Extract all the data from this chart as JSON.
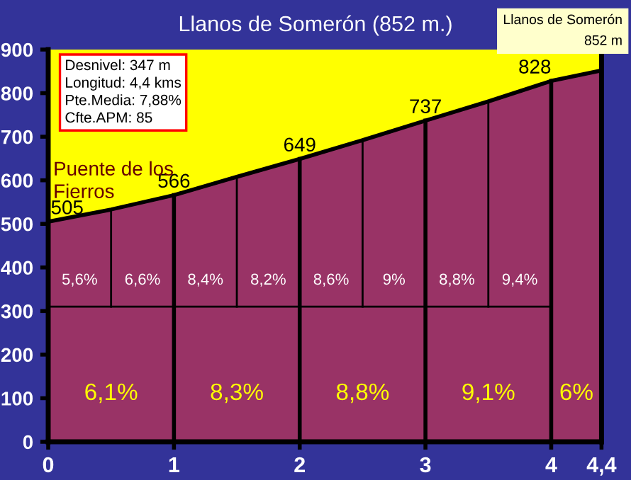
{
  "chart_data": {
    "type": "area",
    "title": "Llanos de Somerón (852 m.)",
    "x": [
      0,
      0.5,
      1,
      1.5,
      2,
      2.5,
      3,
      3.5,
      4,
      4.4
    ],
    "series": [
      {
        "color": "#993366",
        "values": [
          505,
          533,
          566,
          608,
          649,
          692,
          737,
          781,
          828,
          852
        ],
        "value_labels": [
          "505",
          null,
          "566",
          null,
          "649",
          null,
          "737",
          null,
          "828",
          null
        ]
      }
    ],
    "xlim": [
      0,
      4.4
    ],
    "ylim": [
      0,
      900
    ],
    "xticks": [
      0,
      1,
      2,
      3,
      4,
      {
        "value": 4.4,
        "label": "4,4"
      }
    ],
    "yticks": [
      0,
      100,
      200,
      300,
      400,
      500,
      600,
      700,
      800,
      900
    ],
    "grid": false,
    "legend": false,
    "ref_lines": [
      {
        "axis": "x",
        "value": 0.5,
        "color": "#000000"
      },
      {
        "axis": "x",
        "value": 1,
        "color": "#000000"
      },
      {
        "axis": "x",
        "value": 1.5,
        "color": "#000000"
      },
      {
        "axis": "x",
        "value": 2,
        "color": "#000000"
      },
      {
        "axis": "x",
        "value": 2.5,
        "color": "#000000"
      },
      {
        "axis": "x",
        "value": 3,
        "color": "#000000"
      },
      {
        "axis": "x",
        "value": 3.5,
        "color": "#000000"
      },
      {
        "axis": "x",
        "value": 4,
        "color": "#000000"
      },
      {
        "axis": "y",
        "value": 310,
        "color": "#000000"
      }
    ],
    "annotations": [
      "Desnivel: 347 m\nLongitud: 4,4 kms\nPte.Media: 7,88%\nCfte.APM: 85",
      "Llanos de Somerón\n852 m",
      {
        "text": "Puente de los\nFierros",
        "x": 0,
        "y": 505
      },
      "5,6%",
      "6,6%",
      "8,4%",
      "8,2%",
      "8,6%",
      "9%",
      "8,8%",
      "9,4%",
      "6,1%",
      "8,3%",
      "8,8%",
      "9,1%",
      "6%"
    ]
  }
}
